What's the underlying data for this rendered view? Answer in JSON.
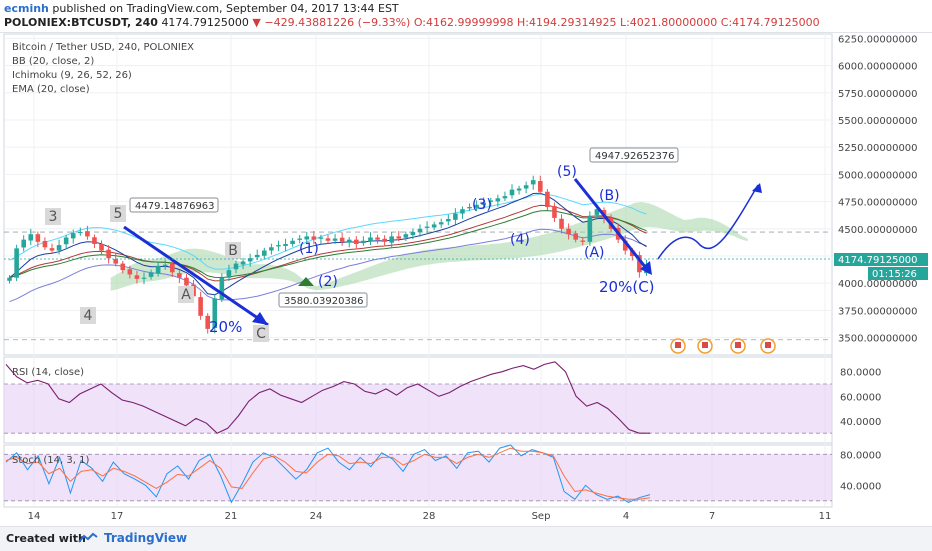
{
  "header": {
    "username": "ecminh",
    "published_text": "published on TradingView.com, September 04, 2017 13:44 EST",
    "symbol": "POLONIEX:BTCUSDT, 240",
    "last": "4174.79125000",
    "change": "▼ −429.43881226 (−9.33%)",
    "o": "O:4162.99999998",
    "h": "H:4194.29314925",
    "l": "L:4021.80000000",
    "c": "C:4174.79125000"
  },
  "legend": {
    "title": "Bitcoin / Tether USD, 240, POLONIEX",
    "bb": "BB (20, close, 2)",
    "ichimoku": "Ichimoku (9, 26, 52, 26)",
    "ema": "EMA (20, close)"
  },
  "rsi_label": "RSI (14, close)",
  "stoch_label": "Stoch (14, 3, 1)",
  "price_tag": "4174.79125000",
  "countdown": "01:15:26",
  "footer": {
    "created": "Created with",
    "brand": "TradingView"
  },
  "colors": {
    "up": "#26a69a",
    "down": "#ef5350",
    "arrow": "#1b2fd6",
    "cloud": "#a5d6a7",
    "rsi_band": "#e8d5f7",
    "rsi_line": "#7b1f6e"
  },
  "chart_data": [
    {
      "type": "candlestick",
      "panel": "price",
      "y_axis": {
        "ticks": [
          3500,
          3750,
          4000,
          4250,
          4500,
          4750,
          5000,
          5250,
          5500,
          5750,
          6000,
          6250
        ],
        "tick_labels": [
          "3500.00000000",
          "3750.00000000",
          "4000.00000000",
          "4250.00000000",
          "4500.00000000",
          "4750.00000000",
          "5000.00000000",
          "5250.00000000",
          "5500.00000000",
          "5750.00000000",
          "6000.00000000",
          "6250.00000000"
        ],
        "ylim": [
          3340,
          6290
        ]
      },
      "x_axis": {
        "tick_labels": [
          "14",
          "17",
          "21",
          "24",
          "28",
          "Sep",
          "4",
          "7",
          "11"
        ]
      },
      "close_path": [
        4050,
        4320,
        4400,
        4450,
        4380,
        4330,
        4300,
        4350,
        4420,
        4460,
        4470,
        4430,
        4360,
        4300,
        4230,
        4180,
        4120,
        4080,
        4040,
        4050,
        4100,
        4160,
        4170,
        4100,
        4050,
        3980,
        3880,
        3700,
        3580,
        3860,
        4050,
        4120,
        4180,
        4200,
        4230,
        4260,
        4300,
        4330,
        4350,
        4360,
        4390,
        4410,
        4430,
        4400,
        4420,
        4390,
        4410,
        4380,
        4400,
        4360,
        4390,
        4420,
        4400,
        4380,
        4430,
        4410,
        4450,
        4470,
        4500,
        4520,
        4540,
        4560,
        4590,
        4640,
        4680,
        4700,
        4720,
        4740,
        4760,
        4780,
        4800,
        4860,
        4870,
        4900,
        4947,
        4840,
        4700,
        4600,
        4500,
        4450,
        4400,
        4380,
        4620,
        4680,
        4600,
        4500,
        4400,
        4300,
        4250,
        4100,
        4174
      ],
      "annotations": [
        {
          "text": "4479.14876963",
          "kind": "callout"
        },
        {
          "text": "3580.03920386",
          "kind": "callout"
        },
        {
          "text": "4947.92652376",
          "kind": "callout"
        },
        {
          "text": "3",
          "kind": "wave"
        },
        {
          "text": "5",
          "kind": "wave"
        },
        {
          "text": "4",
          "kind": "wave"
        },
        {
          "text": "A",
          "kind": "wave"
        },
        {
          "text": "B",
          "kind": "wave"
        },
        {
          "text": "C",
          "kind": "wave"
        },
        {
          "text": "(1)",
          "kind": "wave"
        },
        {
          "text": "(2)",
          "kind": "wave"
        },
        {
          "text": "(3)",
          "kind": "wave"
        },
        {
          "text": "(4)",
          "kind": "wave"
        },
        {
          "text": "(5)",
          "kind": "wave"
        },
        {
          "text": "(A)",
          "kind": "wave"
        },
        {
          "text": "(B)",
          "kind": "wave"
        },
        {
          "text": "20%",
          "kind": "label"
        },
        {
          "text": "20%(C)",
          "kind": "label"
        }
      ]
    },
    {
      "type": "line",
      "panel": "rsi",
      "title": "RSI (14, close)",
      "y_axis": {
        "ticks": [
          40,
          60,
          80
        ],
        "tick_labels": [
          "40.0000",
          "60.0000",
          "80.0000"
        ],
        "ylim": [
          22,
          92
        ]
      },
      "band": [
        30,
        70
      ],
      "values": [
        86,
        76,
        71,
        73,
        70,
        58,
        55,
        62,
        66,
        70,
        63,
        57,
        55,
        52,
        48,
        44,
        40,
        36,
        42,
        38,
        30,
        34,
        44,
        56,
        63,
        66,
        61,
        58,
        55,
        60,
        65,
        68,
        72,
        70,
        64,
        62,
        66,
        61,
        67,
        70,
        65,
        60,
        63,
        68,
        72,
        75,
        78,
        80,
        83,
        85,
        82,
        86,
        88,
        80,
        60,
        52,
        55,
        50,
        42,
        33,
        30,
        30
      ]
    },
    {
      "type": "line",
      "panel": "stoch",
      "title": "Stoch (14, 3, 1)",
      "y_axis": {
        "ticks": [
          40,
          80
        ],
        "tick_labels": [
          "40.0000",
          "80.0000"
        ],
        "ylim": [
          12,
          92
        ]
      },
      "band": [
        20,
        80
      ],
      "series": [
        {
          "name": "%K",
          "values": [
            70,
            82,
            60,
            78,
            42,
            76,
            30,
            72,
            62,
            45,
            70,
            55,
            48,
            40,
            25,
            55,
            65,
            48,
            72,
            80,
            52,
            18,
            42,
            70,
            82,
            76,
            62,
            48,
            60,
            82,
            88,
            70,
            60,
            76,
            64,
            82,
            74,
            58,
            80,
            86,
            72,
            78,
            62,
            82,
            84,
            70,
            88,
            92,
            78,
            86,
            82,
            76,
            32,
            22,
            40,
            28,
            22,
            26,
            18,
            24,
            28
          ]
        },
        {
          "name": "%D",
          "values": [
            72,
            76,
            68,
            70,
            55,
            62,
            45,
            58,
            60,
            52,
            62,
            58,
            52,
            44,
            36,
            44,
            54,
            52,
            62,
            72,
            62,
            38,
            36,
            56,
            74,
            78,
            70,
            58,
            56,
            70,
            80,
            78,
            68,
            70,
            68,
            76,
            76,
            66,
            72,
            80,
            76,
            76,
            68,
            76,
            80,
            76,
            82,
            88,
            84,
            84,
            82,
            78,
            52,
            32,
            34,
            30,
            26,
            24,
            22,
            22,
            24
          ]
        }
      ]
    }
  ]
}
